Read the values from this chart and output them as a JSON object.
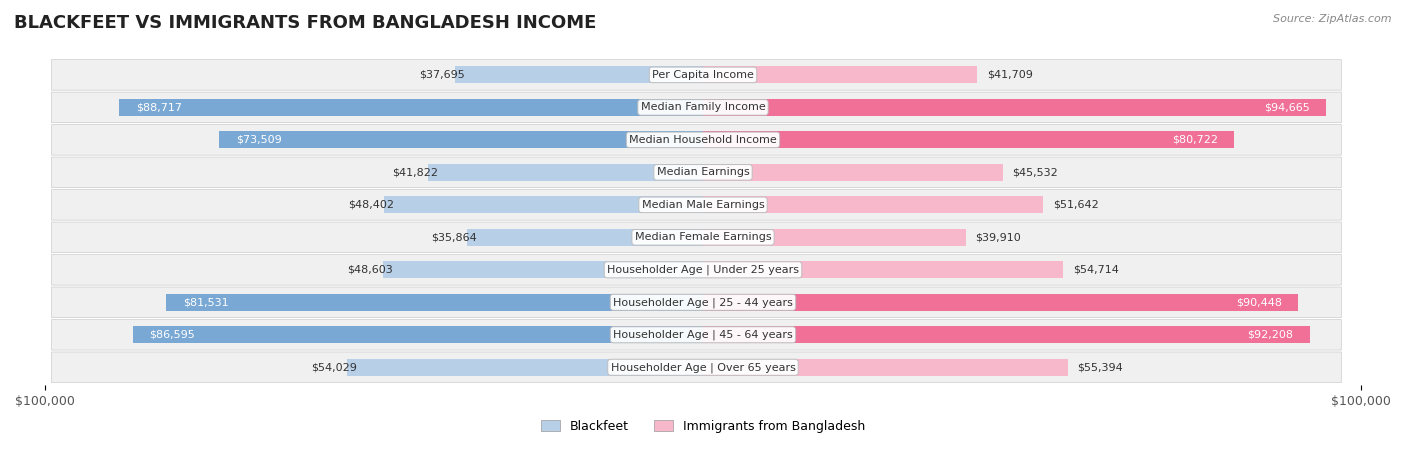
{
  "title": "BLACKFEET VS IMMIGRANTS FROM BANGLADESH INCOME",
  "source": "Source: ZipAtlas.com",
  "categories": [
    "Per Capita Income",
    "Median Family Income",
    "Median Household Income",
    "Median Earnings",
    "Median Male Earnings",
    "Median Female Earnings",
    "Householder Age | Under 25 years",
    "Householder Age | 25 - 44 years",
    "Householder Age | 45 - 64 years",
    "Householder Age | Over 65 years"
  ],
  "blackfeet_values": [
    37695,
    88717,
    73509,
    41822,
    48402,
    35864,
    48603,
    81531,
    86595,
    54029
  ],
  "bangladesh_values": [
    41709,
    94665,
    80722,
    45532,
    51642,
    39910,
    54714,
    90448,
    92208,
    55394
  ],
  "blackfeet_color_light": "#b8cfe8",
  "blackfeet_color_dark": "#7aa8d4",
  "bangladesh_color_light": "#f7b8cc",
  "bangladesh_color_dark": "#f07098",
  "inside_label_threshold": 60000,
  "blackfeet_label": "Blackfeet",
  "bangladesh_label": "Immigrants from Bangladesh",
  "max_value": 100000,
  "bg_color": "#ffffff",
  "row_bg": "#f0f0f0",
  "title_fontsize": 13,
  "tick_fontsize": 9,
  "value_fontsize": 8,
  "category_fontsize": 8
}
